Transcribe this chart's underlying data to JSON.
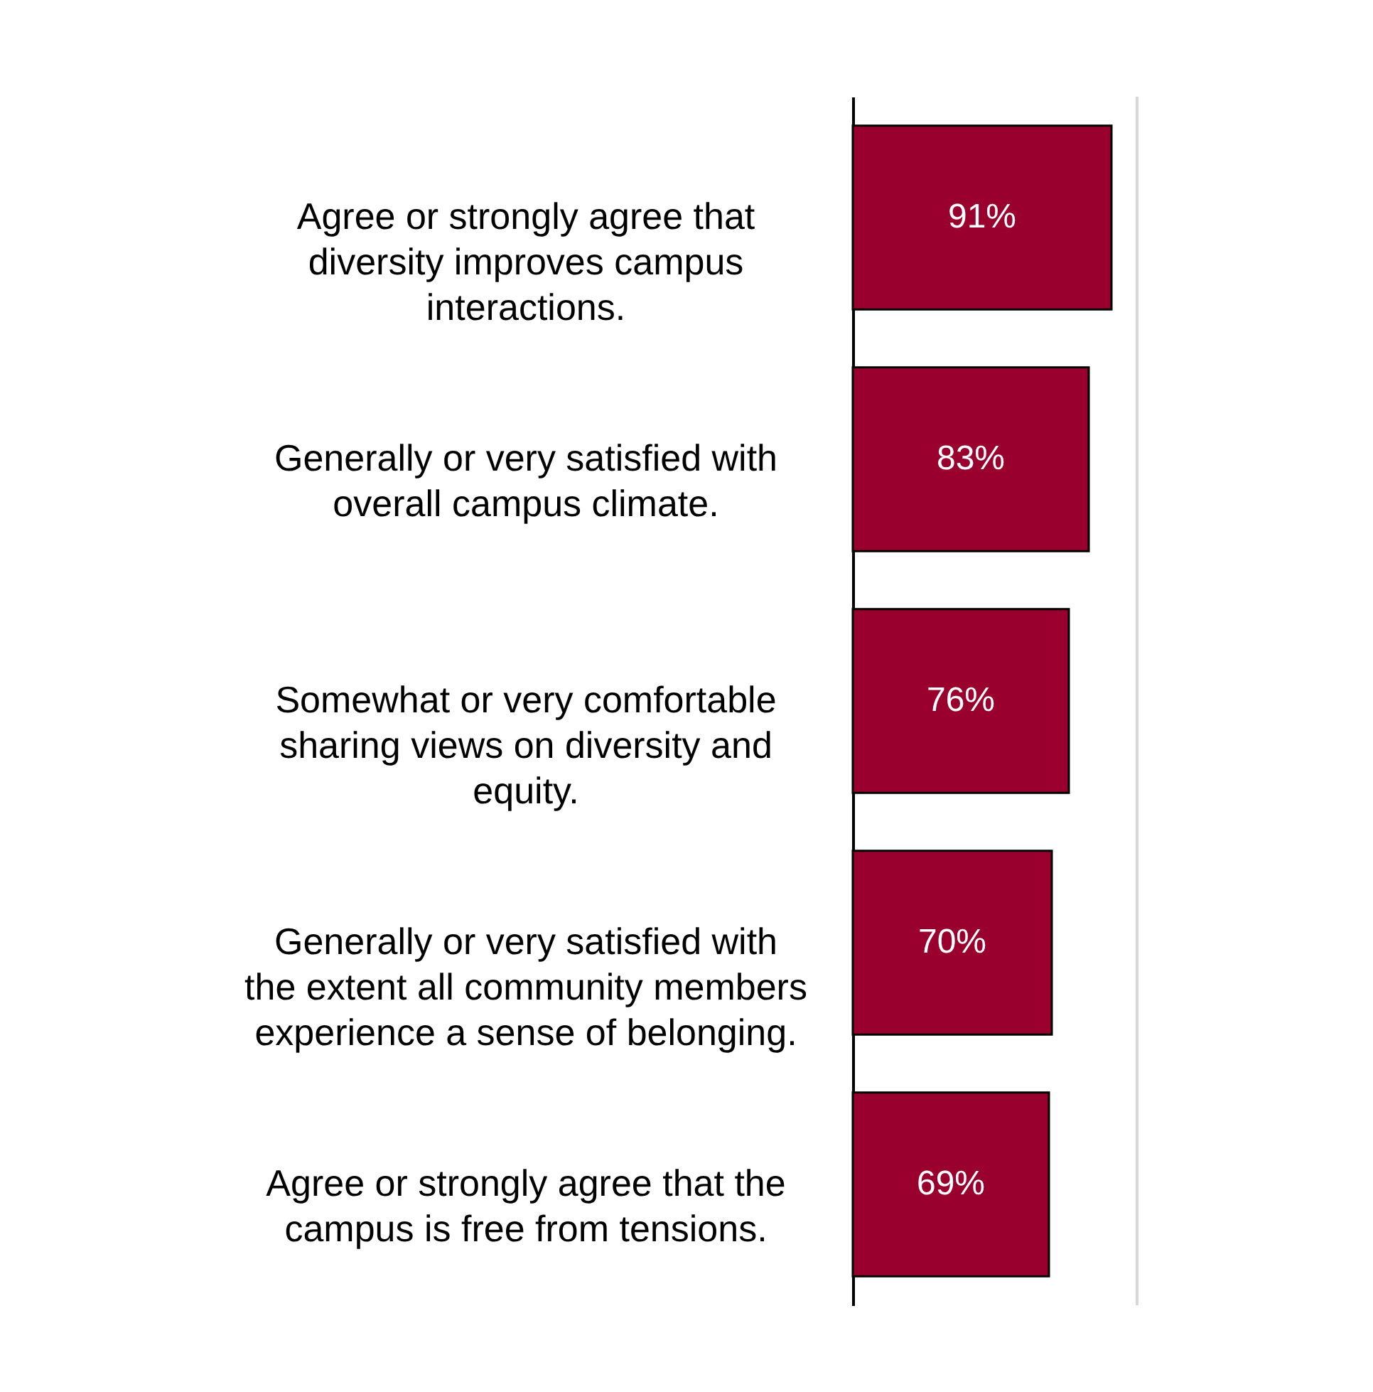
{
  "chart_data": {
    "type": "bar",
    "orientation": "horizontal",
    "categories": [
      "Agree or strongly agree that diversity improves campus interactions.",
      "Generally or very satisfied with overall campus climate.",
      "Somewhat or very comfortable sharing views on diversity and equity.",
      "Generally or very satisfied with the extent all community members experience a sense of belonging.",
      "Agree or strongly agree that the campus is free from tensions."
    ],
    "values": [
      91,
      83,
      76,
      70,
      69
    ],
    "value_labels": [
      "91%",
      "83%",
      "76%",
      "70%",
      "69%"
    ],
    "color": "#99002e",
    "xlim": [
      0,
      100
    ],
    "ref_lines": [
      {
        "axis": "x",
        "value": 100,
        "color": "#d9d9d9"
      }
    ]
  }
}
